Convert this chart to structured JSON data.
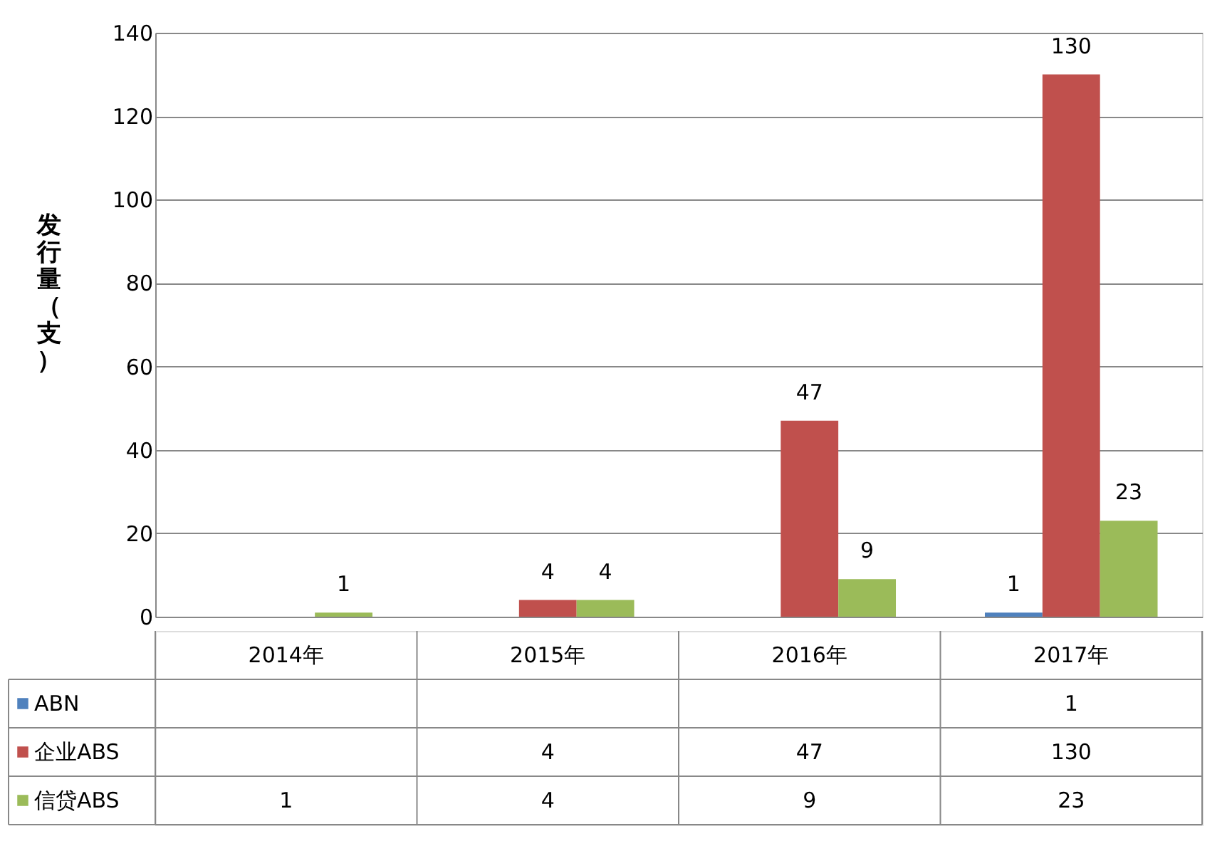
{
  "chart_data": [
    {
      "type": "bar",
      "categories": [
        "2014年",
        "2015年",
        "2016年",
        "2017年"
      ],
      "ylabel": "发行量（支）",
      "ylim": [
        0,
        140
      ],
      "yticks": [
        0,
        20,
        40,
        60,
        80,
        100,
        120,
        140
      ],
      "grid": "y",
      "legend": "bottom",
      "data_labels": true,
      "series": [
        {
          "name": "ABN",
          "color": "#4f81bd",
          "values": [
            null,
            null,
            null,
            1
          ]
        },
        {
          "name": "企业ABS",
          "color": "#c0504d",
          "values": [
            null,
            4,
            47,
            130
          ]
        },
        {
          "name": "信贷ABS",
          "color": "#9bbb59",
          "values": [
            1,
            4,
            9,
            23
          ]
        }
      ]
    },
    {
      "type": "other",
      "annotations": [
        "1",
        "4",
        "47",
        "130",
        "1",
        "4",
        "9",
        "23"
      ]
    }
  ]
}
